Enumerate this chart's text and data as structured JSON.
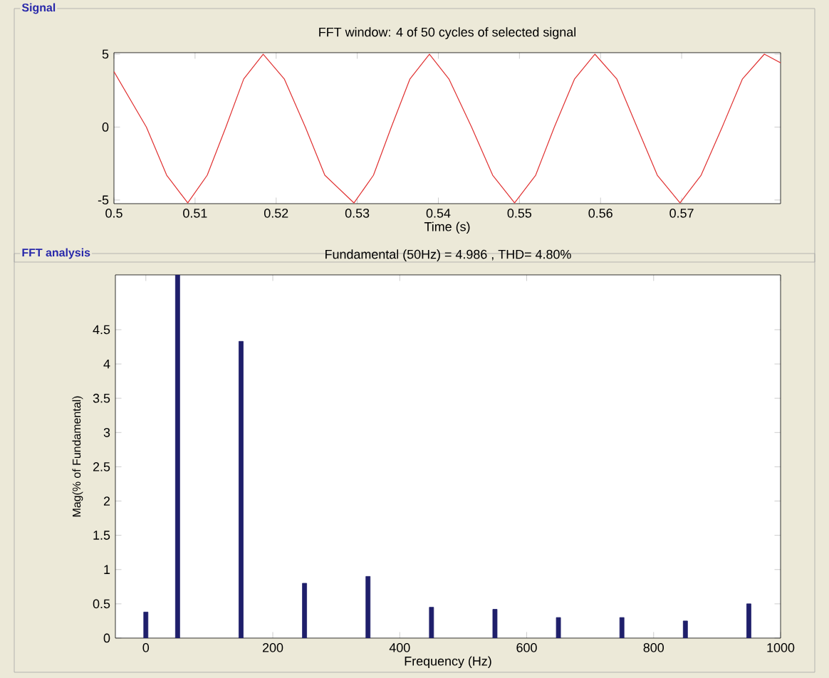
{
  "chart_data": [
    {
      "type": "line",
      "title": "FFT window: 4 of 50 cycles of selected signal",
      "xlabel": "Time (s)",
      "annotations": [
        "Signal"
      ],
      "x": [
        0.5,
        0.504,
        0.5065,
        0.5091,
        0.5115,
        0.5138,
        0.516,
        0.5184,
        0.521,
        0.5236,
        0.526,
        0.5296,
        0.532,
        0.5342,
        0.5365,
        0.5389,
        0.5413,
        0.5441,
        0.5467,
        0.5494,
        0.552,
        0.5543,
        0.5568,
        0.5593,
        0.562,
        0.5645,
        0.567,
        0.5698,
        0.5724,
        0.575,
        0.5775,
        0.5802,
        0.5822
      ],
      "series": [
        {
          "color": "#e03030",
          "values": [
            3.8,
            0,
            -3.3,
            -5.2,
            -3.3,
            0,
            3.3,
            5,
            3.3,
            0,
            -3.3,
            -5.2,
            -3.3,
            0,
            3.3,
            5,
            3.3,
            0,
            -3.3,
            -5.2,
            -3.3,
            0,
            3.3,
            5,
            3.3,
            0,
            -3.3,
            -5.2,
            -3.3,
            0,
            3.3,
            5,
            4.4
          ]
        }
      ],
      "xlim": [
        0.5,
        0.5822
      ],
      "ylim": [
        -5.25,
        5.1
      ],
      "xticks": [
        0.5,
        0.51,
        0.52,
        0.53,
        0.54,
        0.55,
        0.56,
        0.57
      ],
      "yticks": [
        -5,
        0,
        5
      ]
    },
    {
      "type": "bar",
      "title": "Fundamental (50Hz) = 4.986 , THD= 4.80%",
      "xlabel": "Frequency (Hz)",
      "ylabel": "Mag(% of Fundamental)",
      "annotations": [
        "FFT analysis"
      ],
      "x": [
        0,
        50,
        150,
        250,
        350,
        450,
        550,
        650,
        750,
        850,
        950
      ],
      "series": [
        {
          "color": "#1f1f6b",
          "values": [
            0.38,
            5.3,
            4.33,
            0.8,
            0.9,
            0.45,
            0.42,
            0.3,
            0.3,
            0.25,
            0.5
          ]
        }
      ],
      "xlim": [
        -48,
        1000
      ],
      "ylim": [
        0,
        5.3
      ],
      "xticks": [
        0,
        200,
        400,
        600,
        800,
        1000
      ],
      "yticks": [
        0,
        0.5,
        1,
        1.5,
        2,
        2.5,
        3,
        3.5,
        4,
        4.5
      ]
    }
  ]
}
